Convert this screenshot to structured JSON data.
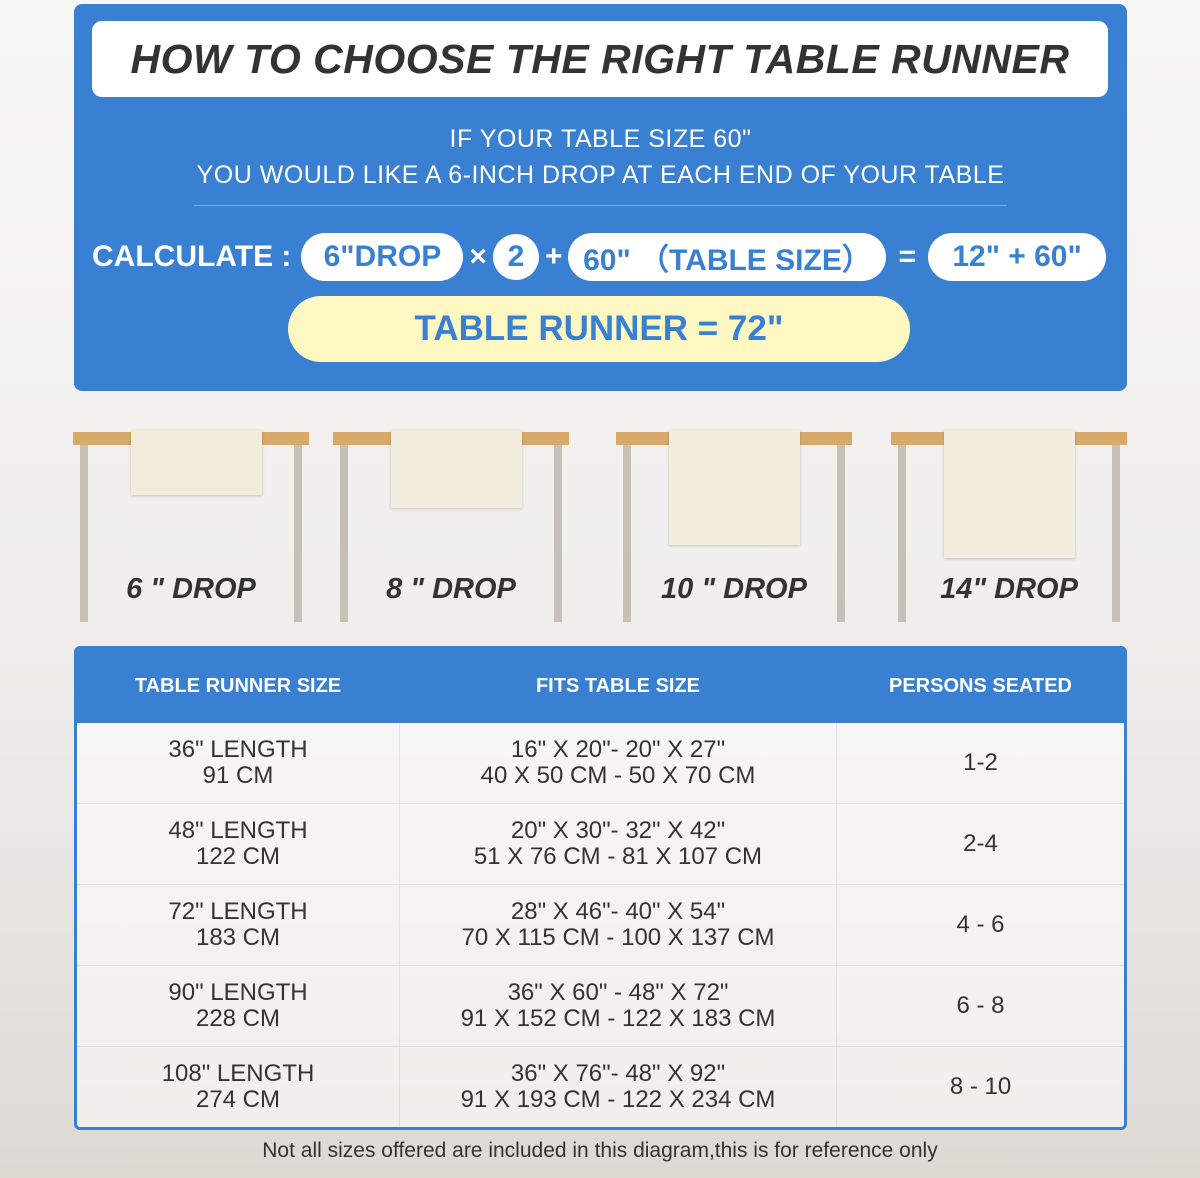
{
  "header": {
    "title": "HOW TO CHOOSE THE RIGHT TABLE RUNNER",
    "line1": "IF YOUR TABLE SIZE 60\"",
    "line2": "YOU WOULD LIKE A 6-INCH DROP AT EACH END OF YOUR TABLE"
  },
  "calc": {
    "label": "CALCULATE :",
    "drop": "6\"DROP",
    "times": "×",
    "multiplier": "2",
    "plus": "+",
    "table": "60\" （TABLE SIZE）",
    "equals": "=",
    "sum": "12\" + 60\"",
    "result": "TABLE RUNNER = 72\""
  },
  "drops": [
    {
      "label": "6 \" DROP"
    },
    {
      "label": "8 \" DROP"
    },
    {
      "label": "10 \" DROP"
    },
    {
      "label": "14\" DROP"
    }
  ],
  "table": {
    "headers": [
      "TABLE RUNNER SIZE",
      "FITS TABLE SIZE",
      "PERSONS SEATED"
    ],
    "rows": [
      {
        "size": "36\" LENGTH",
        "size_cm": "91 CM",
        "fits": "16\" X 20\"- 20\" X 27\"",
        "fits_cm": "40 X 50 CM - 50 X 70 CM",
        "persons": "1-2"
      },
      {
        "size": "48\" LENGTH",
        "size_cm": "122 CM",
        "fits": "20\" X 30\"- 32\" X 42\"",
        "fits_cm": "51 X 76 CM - 81 X 107 CM",
        "persons": "2-4"
      },
      {
        "size": "72\" LENGTH",
        "size_cm": "183 CM",
        "fits": "28\" X 46\"- 40\" X 54\"",
        "fits_cm": "70 X 115 CM - 100 X 137 CM",
        "persons": "4 - 6"
      },
      {
        "size": "90\" LENGTH",
        "size_cm": "228 CM",
        "fits": "36\" X 60\" - 48\" X 72\"",
        "fits_cm": "91 X 152 CM - 122 X 183 CM",
        "persons": "6 - 8"
      },
      {
        "size": "108\" LENGTH",
        "size_cm": "274 CM",
        "fits": "36\" X 76\"- 48\" X 92\"",
        "fits_cm": "91 X 193 CM - 122 X 234 CM",
        "persons": "8 - 10"
      }
    ]
  },
  "footer": {
    "note": "Not all sizes offered are included in this diagram,this is for reference only"
  },
  "colors": {
    "accent": "#3a80d2",
    "result_bg": "#fdf8c2",
    "tabletop": "#d7aa6c"
  }
}
